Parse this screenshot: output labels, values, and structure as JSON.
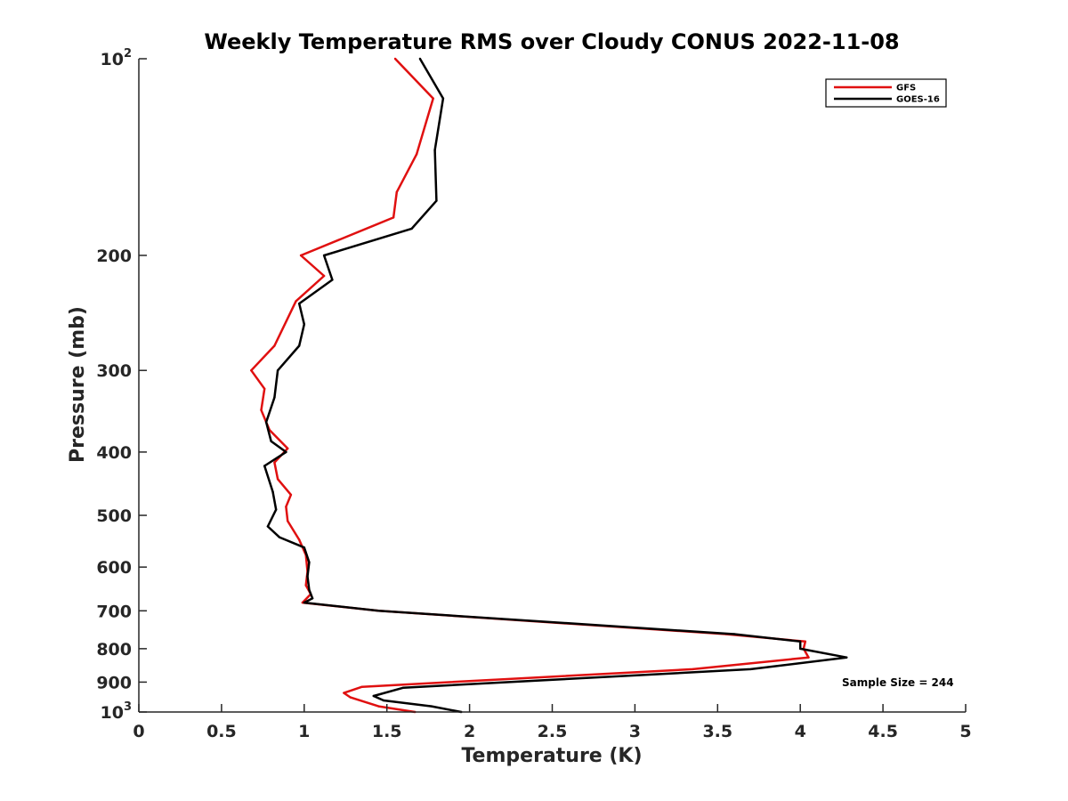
{
  "chart_data": {
    "type": "line",
    "title": "Weekly Temperature RMS over Cloudy CONUS 2022-11-08",
    "xlabel": "Temperature (K)",
    "ylabel": "Pressure (mb)",
    "xlim": [
      0,
      5
    ],
    "ylim": [
      100,
      1000
    ],
    "yscale": "log",
    "y_reversed": true,
    "x_ticks": [
      0,
      0.5,
      1,
      1.5,
      2,
      2.5,
      3,
      3.5,
      4,
      4.5,
      5
    ],
    "x_tick_labels": [
      "0",
      "0.5",
      "1",
      "1.5",
      "2",
      "2.5",
      "3",
      "3.5",
      "4",
      "4.5",
      "5"
    ],
    "y_ticks": [
      {
        "value": 100,
        "label": "10",
        "sup": "2"
      },
      {
        "value": 200,
        "label": "200",
        "sup": ""
      },
      {
        "value": 300,
        "label": "300",
        "sup": ""
      },
      {
        "value": 400,
        "label": "400",
        "sup": ""
      },
      {
        "value": 500,
        "label": "500",
        "sup": ""
      },
      {
        "value": 600,
        "label": "600",
        "sup": ""
      },
      {
        "value": 700,
        "label": "700",
        "sup": ""
      },
      {
        "value": 800,
        "label": "800",
        "sup": ""
      },
      {
        "value": 900,
        "label": "900",
        "sup": ""
      },
      {
        "value": 1000,
        "label": "10",
        "sup": "3"
      }
    ],
    "legend_position": "top-right",
    "annotation": "Sample Size = 244",
    "series": [
      {
        "name": "GFS",
        "color": "#e01010",
        "points": [
          [
            1.55,
            100
          ],
          [
            1.78,
            115
          ],
          [
            1.68,
            140
          ],
          [
            1.56,
            160
          ],
          [
            1.54,
            175
          ],
          [
            0.98,
            200
          ],
          [
            1.12,
            215
          ],
          [
            0.95,
            235
          ],
          [
            0.82,
            275
          ],
          [
            0.68,
            300
          ],
          [
            0.76,
            320
          ],
          [
            0.74,
            345
          ],
          [
            0.79,
            370
          ],
          [
            0.9,
            395
          ],
          [
            0.82,
            415
          ],
          [
            0.84,
            440
          ],
          [
            0.92,
            465
          ],
          [
            0.89,
            485
          ],
          [
            0.9,
            510
          ],
          [
            0.97,
            545
          ],
          [
            1.01,
            575
          ],
          [
            1.02,
            610
          ],
          [
            1.01,
            640
          ],
          [
            1.04,
            660
          ],
          [
            0.99,
            680
          ],
          [
            1.45,
            700
          ],
          [
            3.55,
            760
          ],
          [
            4.03,
            780
          ],
          [
            4.02,
            800
          ],
          [
            4.05,
            825
          ],
          [
            3.35,
            860
          ],
          [
            1.35,
            915
          ],
          [
            1.24,
            935
          ],
          [
            1.28,
            950
          ],
          [
            1.45,
            980
          ],
          [
            1.67,
            1000
          ]
        ]
      },
      {
        "name": "GOES-16",
        "color": "#000000",
        "points": [
          [
            1.7,
            100
          ],
          [
            1.84,
            115
          ],
          [
            1.79,
            138
          ],
          [
            1.8,
            165
          ],
          [
            1.65,
            182
          ],
          [
            1.12,
            200
          ],
          [
            1.17,
            218
          ],
          [
            0.97,
            237
          ],
          [
            1.0,
            255
          ],
          [
            0.97,
            275
          ],
          [
            0.84,
            300
          ],
          [
            0.82,
            330
          ],
          [
            0.77,
            360
          ],
          [
            0.8,
            385
          ],
          [
            0.89,
            400
          ],
          [
            0.76,
            420
          ],
          [
            0.81,
            460
          ],
          [
            0.83,
            490
          ],
          [
            0.78,
            520
          ],
          [
            0.85,
            540
          ],
          [
            1.0,
            560
          ],
          [
            1.03,
            590
          ],
          [
            1.02,
            620
          ],
          [
            1.03,
            650
          ],
          [
            1.05,
            670
          ],
          [
            1.0,
            680
          ],
          [
            1.45,
            700
          ],
          [
            3.6,
            760
          ],
          [
            4.0,
            780
          ],
          [
            4.0,
            800
          ],
          [
            4.28,
            825
          ],
          [
            3.7,
            860
          ],
          [
            1.6,
            918
          ],
          [
            1.42,
            945
          ],
          [
            1.48,
            960
          ],
          [
            1.77,
            980
          ],
          [
            1.95,
            1000
          ]
        ]
      }
    ]
  }
}
